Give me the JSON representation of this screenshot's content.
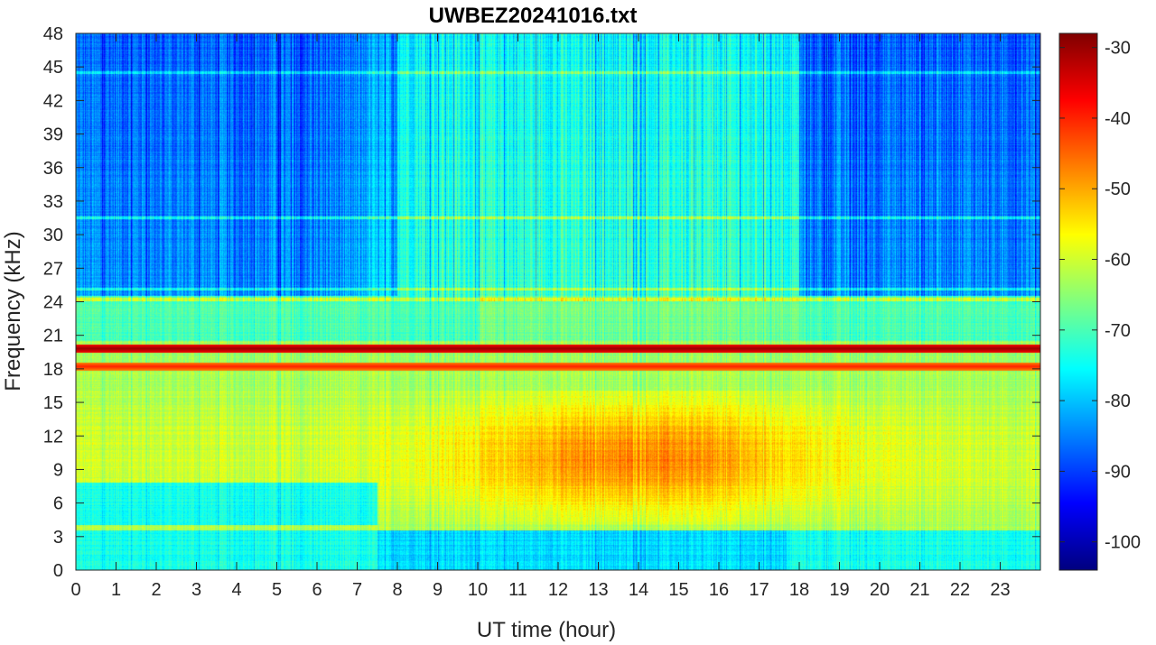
{
  "chart_data": {
    "type": "heatmap",
    "title": "UWBEZ20241016.txt",
    "xlabel": "UT time (hour)",
    "ylabel": "Frequency (kHz)",
    "xlim": [
      0,
      24
    ],
    "ylim": [
      0,
      48
    ],
    "x_ticks": [
      0,
      1,
      2,
      3,
      4,
      5,
      6,
      7,
      8,
      9,
      10,
      11,
      12,
      13,
      14,
      15,
      16,
      17,
      18,
      19,
      20,
      21,
      22,
      23
    ],
    "y_ticks": [
      0,
      3,
      6,
      9,
      12,
      15,
      18,
      21,
      24,
      27,
      30,
      33,
      36,
      39,
      42,
      45,
      48
    ],
    "colorbar": {
      "colormap": "jet",
      "range": [
        -104,
        -28
      ],
      "ticks": [
        -100,
        -90,
        -80,
        -70,
        -60,
        -50,
        -40,
        -30
      ]
    },
    "grid": false,
    "transmitter_lines_khz": [
      19.8,
      18.2
    ],
    "intensity_description": {
      "high_freq_background_db": -85,
      "low_band_peak_db": -50,
      "low_band_peak_hours": [
        10,
        18
      ],
      "low_band_freq_range_khz": [
        4,
        16
      ]
    }
  }
}
